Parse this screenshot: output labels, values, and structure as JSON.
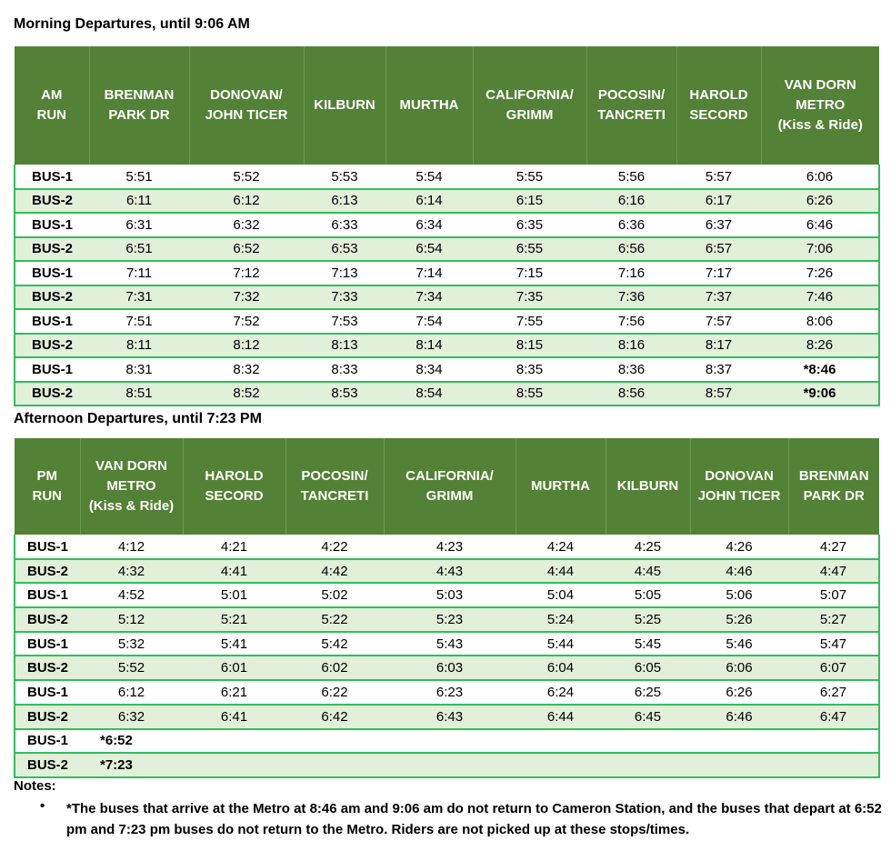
{
  "am": {
    "title": "Morning Departures, until 9:06 AM",
    "headers": [
      "AM\nRUN",
      "BRENMAN\nPARK DR",
      "DONOVAN/\nJOHN TICER",
      "KILBURN",
      "MURTHA",
      "CALIFORNIA/\nGRIMM",
      "POCOSIN/\nTANCRETI",
      "HAROLD\nSECORD",
      "VAN DORN\nMETRO\n(Kiss & Ride)"
    ],
    "rows": [
      [
        "BUS-1",
        "5:51",
        "5:52",
        "5:53",
        "5:54",
        "5:55",
        "5:56",
        "5:57",
        "6:06"
      ],
      [
        "BUS-2",
        "6:11",
        "6:12",
        "6:13",
        "6:14",
        "6:15",
        "6:16",
        "6:17",
        "6:26"
      ],
      [
        "BUS-1",
        "6:31",
        "6:32",
        "6:33",
        "6:34",
        "6:35",
        "6:36",
        "6:37",
        "6:46"
      ],
      [
        "BUS-2",
        "6:51",
        "6:52",
        "6:53",
        "6:54",
        "6:55",
        "6:56",
        "6:57",
        "7:06"
      ],
      [
        "BUS-1",
        "7:11",
        "7:12",
        "7:13",
        "7:14",
        "7:15",
        "7:16",
        "7:17",
        "7:26"
      ],
      [
        "BUS-2",
        "7:31",
        "7:32",
        "7:33",
        "7:34",
        "7:35",
        "7:36",
        "7:37",
        "7:46"
      ],
      [
        "BUS-1",
        "7:51",
        "7:52",
        "7:53",
        "7:54",
        "7:55",
        "7:56",
        "7:57",
        "8:06"
      ],
      [
        "BUS-2",
        "8:11",
        "8:12",
        "8:13",
        "8:14",
        "8:15",
        "8:16",
        "8:17",
        "8:26"
      ],
      [
        "BUS-1",
        "8:31",
        "8:32",
        "8:33",
        "8:34",
        "8:35",
        "8:36",
        "8:37",
        "*8:46"
      ],
      [
        "BUS-2",
        "8:51",
        "8:52",
        "8:53",
        "8:54",
        "8:55",
        "8:56",
        "8:57",
        "*9:06"
      ]
    ]
  },
  "pm": {
    "title": "Afternoon Departures, until 7:23 PM",
    "headers": [
      "PM\nRUN",
      "VAN DORN\nMETRO\n(Kiss & Ride)",
      "HAROLD\nSECORD",
      "POCOSIN/\nTANCRETI",
      "CALIFORNIA/\nGRIMM",
      "MURTHA",
      "KILBURN",
      "DONOVAN\nJOHN TICER",
      "BRENMAN\nPARK DR"
    ],
    "rows": [
      [
        "BUS-1",
        "4:12",
        "4:21",
        "4:22",
        "4:23",
        "4:24",
        "4:25",
        "4:26",
        "4:27"
      ],
      [
        "BUS-2",
        "4:32",
        "4:41",
        "4:42",
        "4:43",
        "4:44",
        "4:45",
        "4:46",
        "4:47"
      ],
      [
        "BUS-1",
        "4:52",
        "5:01",
        "5:02",
        "5:03",
        "5:04",
        "5:05",
        "5:06",
        "5:07"
      ],
      [
        "BUS-2",
        "5:12",
        "5:21",
        "5:22",
        "5:23",
        "5:24",
        "5:25",
        "5:26",
        "5:27"
      ],
      [
        "BUS-1",
        "5:32",
        "5:41",
        "5:42",
        "5:43",
        "5:44",
        "5:45",
        "5:46",
        "5:47"
      ],
      [
        "BUS-2",
        "5:52",
        "6:01",
        "6:02",
        "6:03",
        "6:04",
        "6:05",
        "6:06",
        "6:07"
      ],
      [
        "BUS-1",
        "6:12",
        "6:21",
        "6:22",
        "6:23",
        "6:24",
        "6:25",
        "6:26",
        "6:27"
      ],
      [
        "BUS-2",
        "6:32",
        "6:41",
        "6:42",
        "6:43",
        "6:44",
        "6:45",
        "6:46",
        "6:47"
      ],
      [
        "BUS-1",
        "*6:52",
        "",
        "",
        "",
        "",
        "",
        "",
        ""
      ],
      [
        "BUS-2",
        "*7:23",
        "",
        "",
        "",
        "",
        "",
        "",
        ""
      ]
    ]
  },
  "notes": {
    "label": "Notes:",
    "items": [
      "*The buses that arrive at the Metro at 8:46 am and 9:06 am do not return to Cameron Station, and the buses that depart at 6:52 pm and 7:23 pm buses do not return to the Metro. Riders are not picked up at these stops/times."
    ]
  },
  "colors": {
    "header": "#538135",
    "alt_row": "#e2efd9",
    "border": "#2fbf5a"
  }
}
